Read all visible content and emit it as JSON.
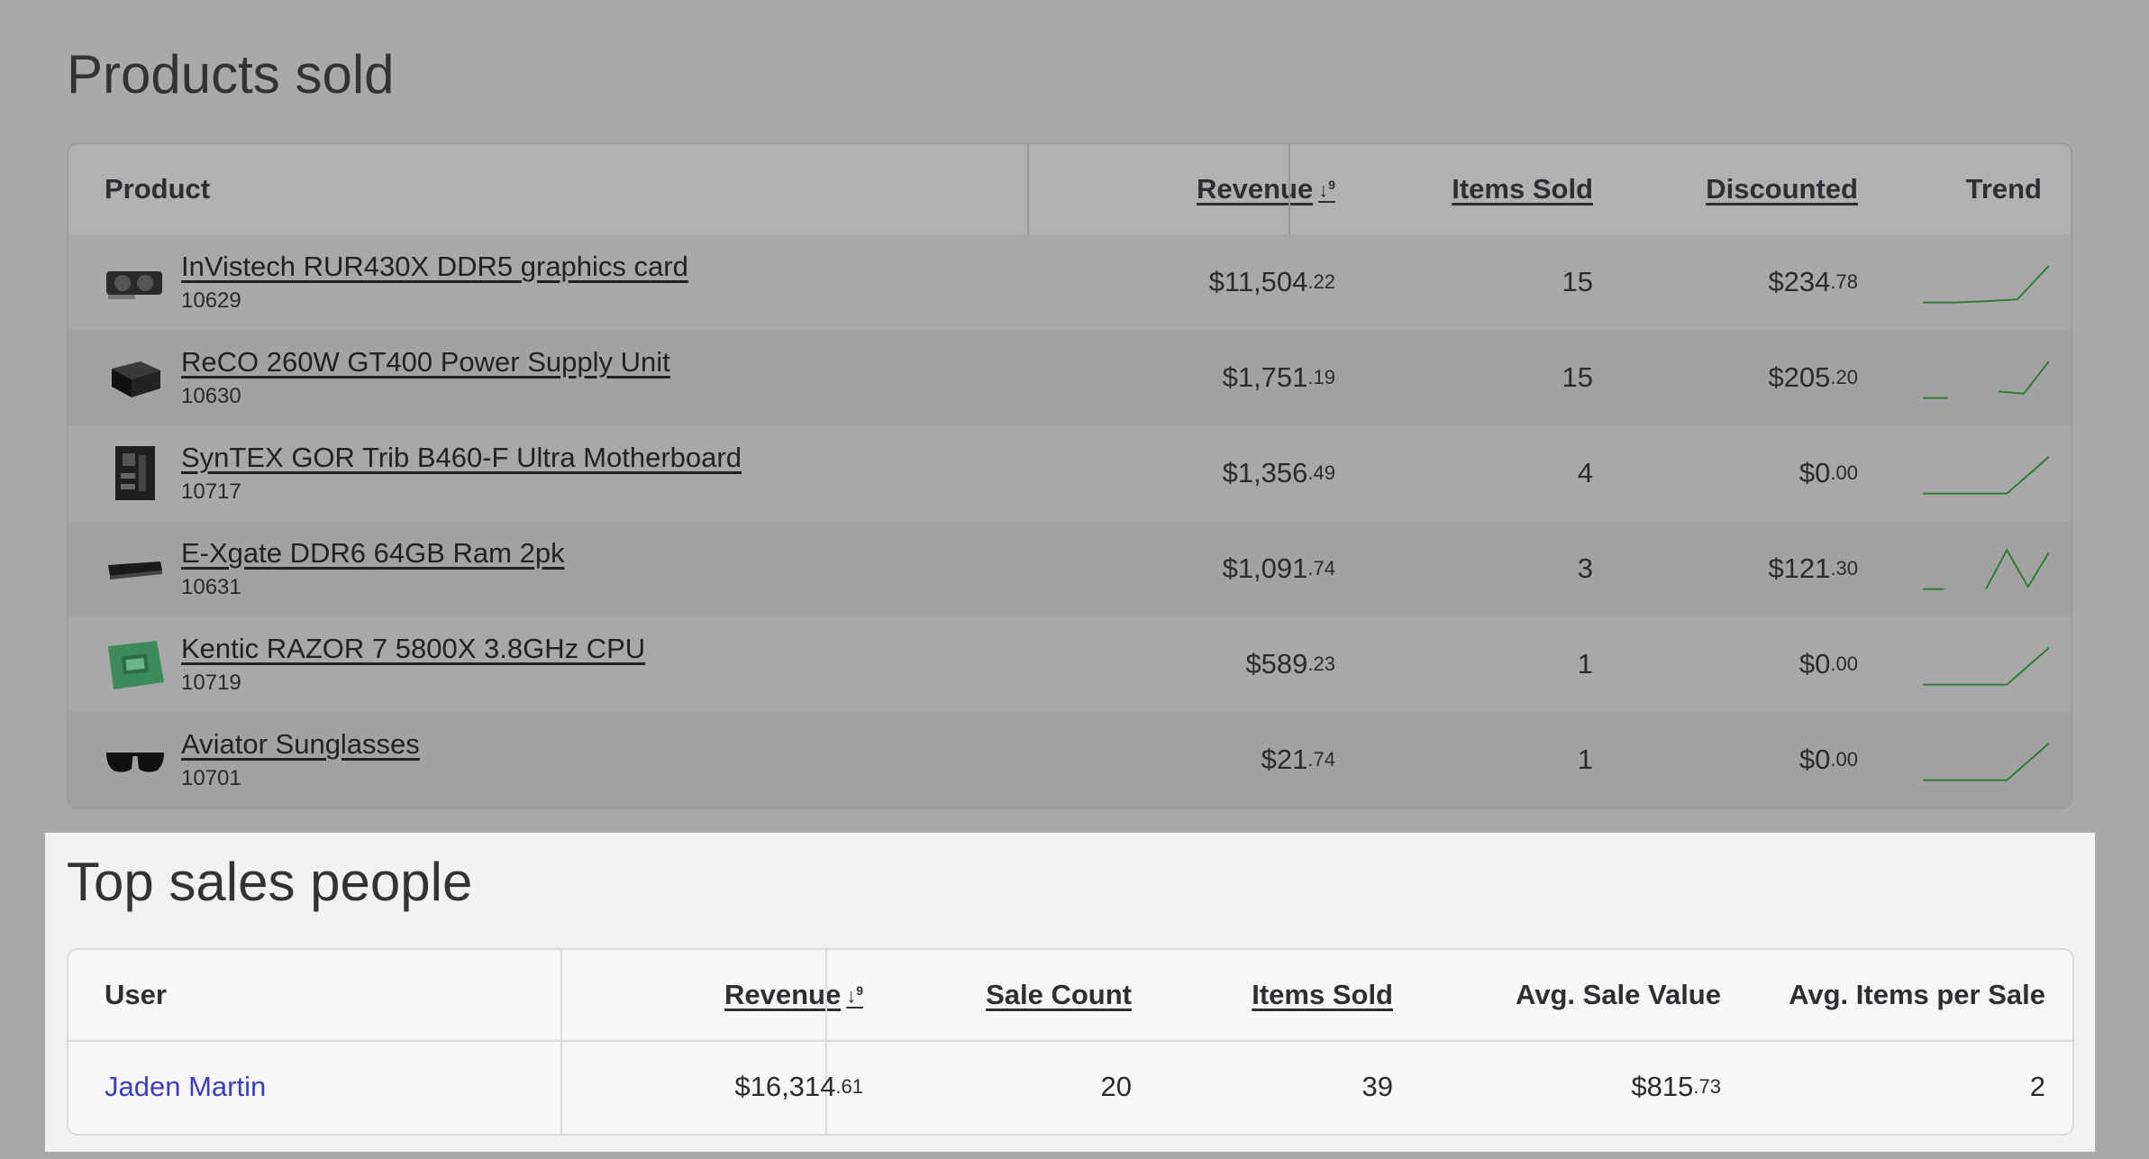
{
  "products_section": {
    "title": "Products sold",
    "headers": {
      "product": "Product",
      "revenue": "Revenue",
      "items_sold": "Items Sold",
      "discounted": "Discounted",
      "trend": "Trend"
    },
    "rows": [
      {
        "name": "InVistech RUR430X DDR5 graphics card",
        "id": "10629",
        "revenue_main": "$11,504",
        "revenue_cents": ".22",
        "items_sold": "15",
        "discount_main": "$234",
        "discount_cents": ".78",
        "trend": [
          0.05,
          0.05,
          0.08,
          0.12,
          0.9
        ],
        "image": "graphics-card-icon"
      },
      {
        "name": "ReCO 260W GT400 Power Supply Unit",
        "id": "10630",
        "revenue_main": "$1,751",
        "revenue_cents": ".19",
        "items_sold": "15",
        "discount_main": "$205",
        "discount_cents": ".20",
        "trend": [
          0.05,
          0.05,
          null,
          0.2,
          0.15,
          0.9
        ],
        "image": "power-supply-icon"
      },
      {
        "name": "SynTEX GOR Trib B460-F Ultra Motherboard",
        "id": "10717",
        "revenue_main": "$1,356",
        "revenue_cents": ".49",
        "items_sold": "4",
        "discount_main": "$0",
        "discount_cents": ".00",
        "trend": [
          0.05,
          0.05,
          0.05,
          0.9
        ],
        "image": "motherboard-icon"
      },
      {
        "name": "E-Xgate DDR6 64GB Ram 2pk",
        "id": "10631",
        "revenue_main": "$1,091",
        "revenue_cents": ".74",
        "items_sold": "3",
        "discount_main": "$121",
        "discount_cents": ".30",
        "trend": [
          0.05,
          0.05,
          null,
          0.05,
          0.95,
          0.1,
          0.9
        ],
        "image": "ram-icon"
      },
      {
        "name": "Kentic RAZOR 7 5800X 3.8GHz CPU",
        "id": "10719",
        "revenue_main": "$589",
        "revenue_cents": ".23",
        "items_sold": "1",
        "discount_main": "$0",
        "discount_cents": ".00",
        "trend": [
          0.05,
          0.05,
          0.05,
          0.9
        ],
        "image": "cpu-box-icon"
      },
      {
        "name": "Aviator Sunglasses",
        "id": "10701",
        "revenue_main": "$21",
        "revenue_cents": ".74",
        "items_sold": "1",
        "discount_main": "$0",
        "discount_cents": ".00",
        "trend": [
          0.05,
          0.05,
          0.05,
          0.9
        ],
        "image": "sunglasses-icon"
      }
    ],
    "trend_color": "#2e7d32"
  },
  "sales_section": {
    "title": "Top sales people",
    "headers": {
      "user": "User",
      "revenue": "Revenue",
      "sale_count": "Sale Count",
      "items_sold": "Items Sold",
      "avg_sale_value": "Avg. Sale Value",
      "avg_items": "Avg. Items per Sale"
    },
    "rows": [
      {
        "user": "Jaden Martin",
        "revenue_main": "$16,314",
        "revenue_cents": ".61",
        "sale_count": "20",
        "items_sold": "39",
        "avg_main": "$815",
        "avg_cents": ".73",
        "avg_items": "2"
      }
    ]
  },
  "sort_icon": "sort-desc-icon",
  "colors": {
    "link": "#3a3ec0",
    "overlay": "#a9a9ab"
  }
}
